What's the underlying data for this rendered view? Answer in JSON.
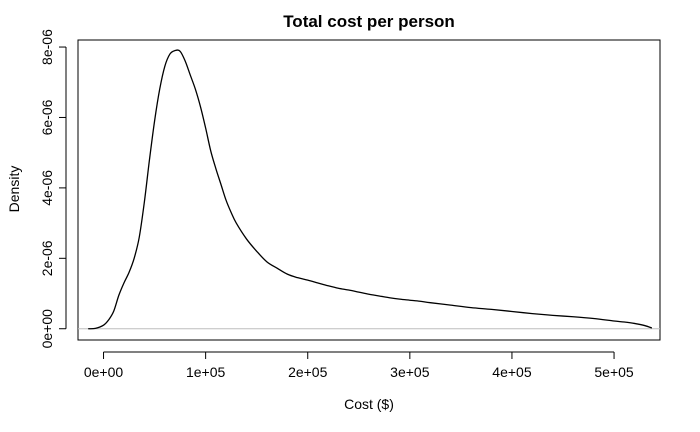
{
  "chart_data": {
    "type": "line",
    "title": "Total cost per person",
    "xlabel": "Cost ($)",
    "ylabel": "Density",
    "xlim": [
      -25000,
      545000
    ],
    "ylim": [
      -3.2e-07,
      8.2e-06
    ],
    "x_ticks": [
      {
        "value": 0,
        "label": "0e+00"
      },
      {
        "value": 100000,
        "label": "1e+05"
      },
      {
        "value": 200000,
        "label": "2e+05"
      },
      {
        "value": 300000,
        "label": "3e+05"
      },
      {
        "value": 400000,
        "label": "4e+05"
      },
      {
        "value": 500000,
        "label": "5e+05"
      }
    ],
    "y_ticks": [
      {
        "value": 0,
        "label": "0e+00"
      },
      {
        "value": 2e-06,
        "label": "2e-06"
      },
      {
        "value": 4e-06,
        "label": "4e-06"
      },
      {
        "value": 6e-06,
        "label": "6e-06"
      },
      {
        "value": 8e-06,
        "label": "8e-06"
      }
    ],
    "zero_baseline": true,
    "grid": false,
    "colors": {
      "line": "#000000",
      "baseline": "#bebebe",
      "frame": "#000000"
    },
    "series": [
      {
        "x": [
          -15000,
          -8000,
          0,
          5000,
          10000,
          15000,
          20000,
          25000,
          30000,
          35000,
          40000,
          45000,
          50000,
          55000,
          60000,
          65000,
          70000,
          75000,
          80000,
          85000,
          90000,
          95000,
          100000,
          105000,
          110000,
          115000,
          120000,
          125000,
          130000,
          140000,
          150000,
          160000,
          170000,
          180000,
          190000,
          200000,
          210000,
          220000,
          230000,
          240000,
          250000,
          260000,
          270000,
          280000,
          290000,
          300000,
          310000,
          320000,
          340000,
          360000,
          380000,
          400000,
          420000,
          440000,
          460000,
          480000,
          500000,
          510000,
          520000,
          530000,
          537000
        ],
        "y": [
          0,
          1e-08,
          1e-07,
          2.5e-07,
          5e-07,
          9.5e-07,
          1.3e-06,
          1.6e-06,
          2e-06,
          2.6e-06,
          3.6e-06,
          4.8e-06,
          5.9e-06,
          6.8e-06,
          7.45e-06,
          7.8e-06,
          7.9e-06,
          7.88e-06,
          7.6e-06,
          7.2e-06,
          6.8e-06,
          6.3e-06,
          5.7e-06,
          5.05e-06,
          4.55e-06,
          4.1e-06,
          3.65e-06,
          3.3e-06,
          3e-06,
          2.55e-06,
          2.2e-06,
          1.9e-06,
          1.72e-06,
          1.55e-06,
          1.45e-06,
          1.38e-06,
          1.3e-06,
          1.22e-06,
          1.15e-06,
          1.1e-06,
          1.04e-06,
          9.8e-07,
          9.3e-07,
          8.8e-07,
          8.4e-07,
          8.1e-07,
          7.8e-07,
          7.4e-07,
          6.7e-07,
          6e-07,
          5.5e-07,
          4.9e-07,
          4.3e-07,
          3.8e-07,
          3.4e-07,
          2.9e-07,
          2.2e-07,
          1.9e-07,
          1.5e-07,
          9e-08,
          2e-08
        ]
      }
    ]
  }
}
